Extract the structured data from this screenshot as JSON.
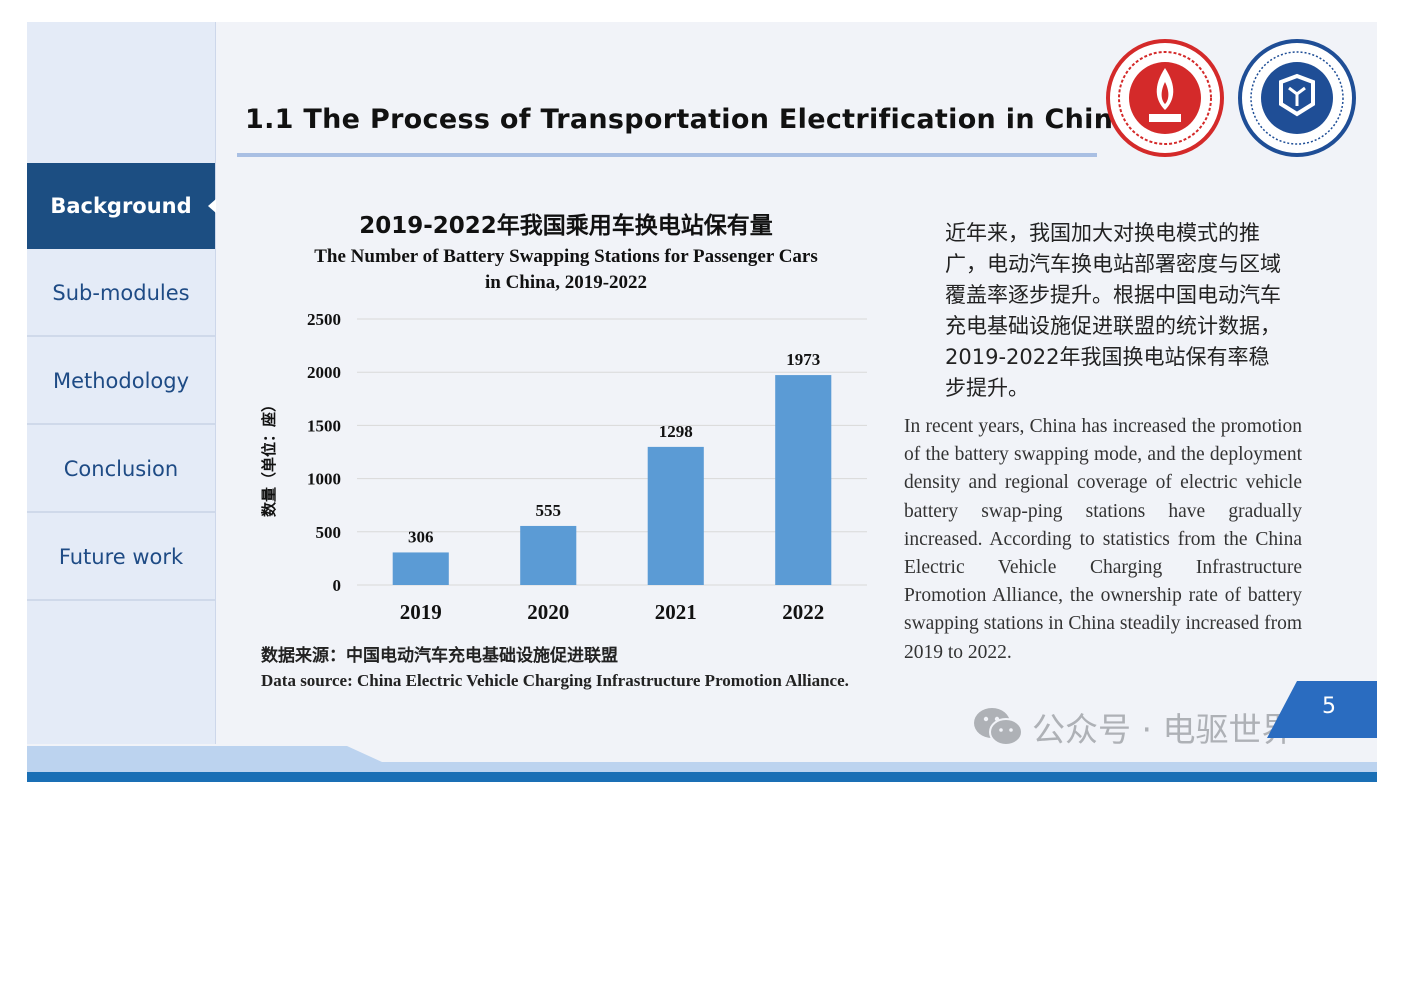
{
  "title": "1.1 The Process of Transportation Electrification in China",
  "sidebar": {
    "items": [
      {
        "label": "Background",
        "active": true
      },
      {
        "label": "Sub-modules",
        "active": false
      },
      {
        "label": "Methodology",
        "active": false
      },
      {
        "label": "Conclusion",
        "active": false
      },
      {
        "label": "Future work",
        "active": false
      }
    ]
  },
  "logos": [
    "university-seal-red",
    "college-emblem-blue"
  ],
  "chart_data": {
    "type": "bar",
    "title": "2019-2022年我国乘用车换电站保有量",
    "subtitle_line1": "The Number of Battery Swapping Stations for Passenger Cars",
    "subtitle_line2": "in China, 2019-2022",
    "ylabel": "数量（单位：座）",
    "xlabel": "",
    "categories": [
      "2019",
      "2020",
      "2021",
      "2022"
    ],
    "values": [
      306,
      555,
      1298,
      1973
    ],
    "ylim": [
      0,
      2500
    ],
    "yticks": [
      0,
      500,
      1000,
      1500,
      2000,
      2500
    ],
    "grid": true,
    "bar_color": "#5b9bd5"
  },
  "source": {
    "cn": "数据来源：中国电动汽车充电基础设施促进联盟",
    "en": "Data source: China Electric Vehicle Charging Infrastructure Promotion Alliance."
  },
  "paragraph_cn": "近年来，我国加大对换电模式的推广，电动汽车换电站部署密度与区域覆盖率逐步提升。根据中国电动汽车充电基础设施促进联盟的统计数据，2019-2022年我国换电站保有率稳步提升。",
  "paragraph_en": "In recent years, China has increased the promotion of the battery swapping mode, and the deployment density and regional coverage of electric vehicle battery swap-ping stations have gradually increased. According to statistics from the China Electric Vehicle Charging Infrastructure Promotion Alliance, the ownership rate of battery swapping stations in China steadily increased from 2019 to 2022.",
  "watermark": {
    "icon": "wechat-icon",
    "text": "公众号 · 电驱世界"
  },
  "page_number": "5",
  "colors": {
    "accent": "#1c4e82",
    "bar": "#5b9bd5",
    "rule": "#a9bfe3",
    "seal_red": "#d42a2a",
    "emblem_blue": "#1f4e96"
  }
}
